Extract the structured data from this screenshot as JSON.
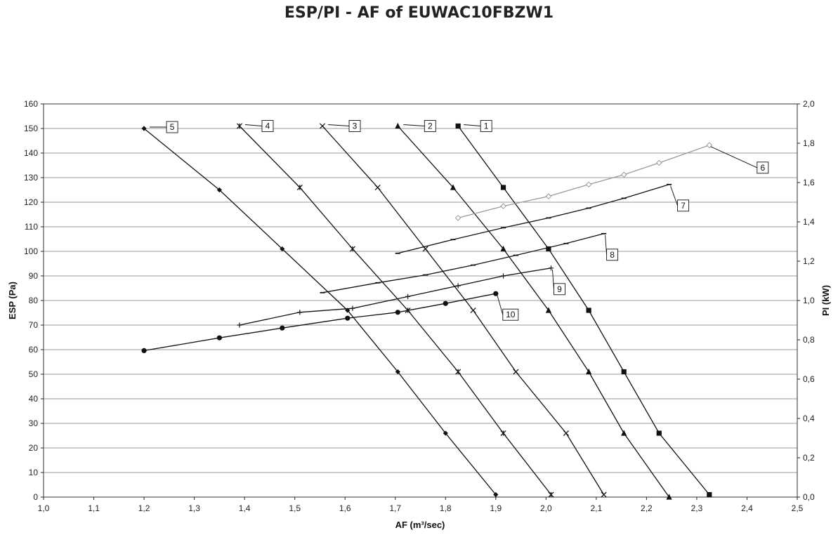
{
  "chart_data": {
    "type": "line",
    "title": "ESP/PI - AF of EUWAC10FBZW1",
    "xlabel": "AF (m³/sec)",
    "ylabel": "ESP (Pa)",
    "y2label": "PI (kW)",
    "xlim": [
      1.0,
      2.5
    ],
    "ylim": [
      0,
      160
    ],
    "y2lim": [
      0,
      2.0
    ],
    "grid": "horizontal",
    "xticks": [
      "1,0",
      "1,1",
      "1,2",
      "1,3",
      "1,4",
      "1,5",
      "1,6",
      "1,7",
      "1,8",
      "1,9",
      "2,0",
      "2,1",
      "2,2",
      "2,3",
      "2,4",
      "2,5"
    ],
    "yticks": [
      "0",
      "10",
      "20",
      "30",
      "40",
      "50",
      "60",
      "70",
      "80",
      "90",
      "100",
      "110",
      "120",
      "130",
      "140",
      "150",
      "160"
    ],
    "y2ticks": [
      "0,0",
      "0,2",
      "0,4",
      "0,6",
      "0,8",
      "1,0",
      "1,2",
      "1,4",
      "1,6",
      "1,8",
      "2,0"
    ],
    "series": [
      {
        "name": "1",
        "axis": "left",
        "marker": "square",
        "color": "#111111",
        "x": [
          1.825,
          1.915,
          2.005,
          2.085,
          2.155,
          2.225,
          2.325
        ],
        "y": [
          151,
          126,
          101,
          76,
          51,
          26,
          1
        ]
      },
      {
        "name": "2",
        "axis": "left",
        "marker": "triangle",
        "color": "#111111",
        "x": [
          1.705,
          1.815,
          1.915,
          2.005,
          2.085,
          2.155,
          2.245
        ],
        "y": [
          151,
          126,
          101,
          76,
          51,
          26,
          0
        ]
      },
      {
        "name": "3",
        "axis": "left",
        "marker": "x",
        "color": "#111111",
        "x": [
          1.555,
          1.665,
          1.76,
          1.855,
          1.94,
          2.04,
          2.115
        ],
        "y": [
          151,
          126,
          101,
          76,
          51,
          26,
          1
        ]
      },
      {
        "name": "4",
        "axis": "left",
        "marker": "star",
        "color": "#111111",
        "x": [
          1.39,
          1.51,
          1.615,
          1.725,
          1.825,
          1.915,
          2.01
        ],
        "y": [
          151,
          126,
          101,
          76,
          51,
          26,
          1
        ]
      },
      {
        "name": "5",
        "axis": "left",
        "marker": "diamond",
        "color": "#111111",
        "x": [
          1.2,
          1.35,
          1.475,
          1.605,
          1.705,
          1.8,
          1.9
        ],
        "y": [
          150,
          125,
          101,
          76,
          51,
          26,
          1
        ]
      },
      {
        "name": "6",
        "axis": "right",
        "marker": "open-diamond",
        "color": "#9a9a9a",
        "x": [
          1.825,
          1.915,
          2.005,
          2.085,
          2.155,
          2.225,
          2.325
        ],
        "y": [
          1.42,
          1.48,
          1.53,
          1.59,
          1.64,
          1.7,
          1.79
        ]
      },
      {
        "name": "7",
        "axis": "right",
        "marker": "dash",
        "color": "#111111",
        "x": [
          1.705,
          1.815,
          1.915,
          2.005,
          2.085,
          2.155,
          2.245
        ],
        "y": [
          1.24,
          1.31,
          1.37,
          1.42,
          1.47,
          1.52,
          1.59
        ]
      },
      {
        "name": "8",
        "axis": "right",
        "marker": "dash",
        "color": "#111111",
        "x": [
          1.555,
          1.665,
          1.76,
          1.855,
          1.94,
          2.04,
          2.115
        ],
        "y": [
          1.04,
          1.09,
          1.13,
          1.18,
          1.23,
          1.29,
          1.34
        ]
      },
      {
        "name": "9",
        "axis": "right",
        "marker": "plus",
        "color": "#111111",
        "x": [
          1.39,
          1.51,
          1.615,
          1.725,
          1.825,
          1.915,
          2.01
        ],
        "y": [
          0.875,
          0.94,
          0.96,
          1.02,
          1.075,
          1.125,
          1.165
        ]
      },
      {
        "name": "10",
        "axis": "right",
        "marker": "circle",
        "color": "#111111",
        "x": [
          1.2,
          1.35,
          1.475,
          1.605,
          1.705,
          1.8,
          1.9
        ],
        "y": [
          0.745,
          0.81,
          0.86,
          0.91,
          0.94,
          0.985,
          1.035
        ]
      }
    ]
  }
}
